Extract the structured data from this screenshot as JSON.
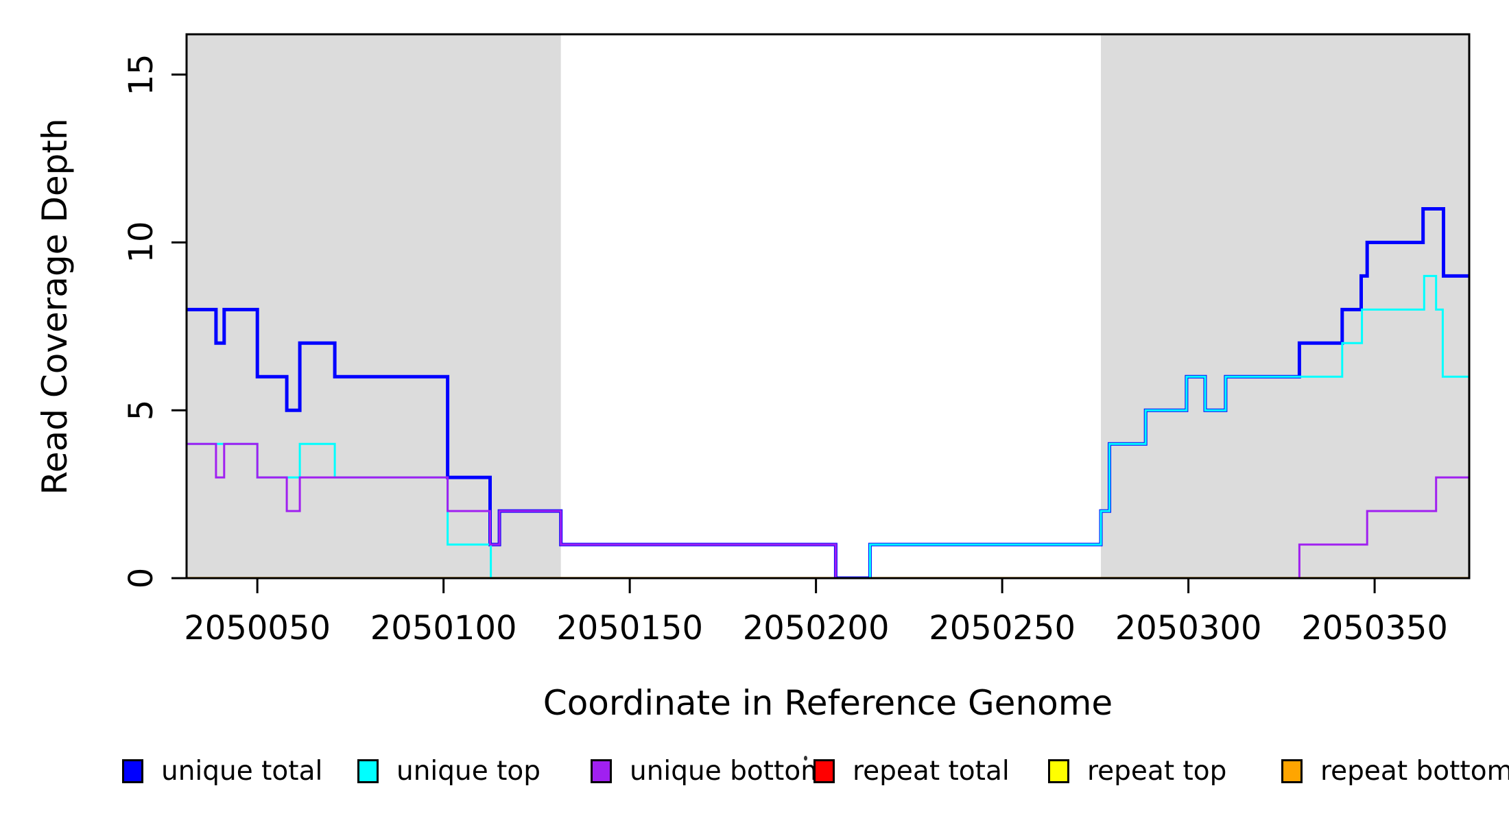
{
  "chart_data": {
    "type": "line",
    "subtype": "step",
    "title": "",
    "xlabel": "Coordinate in Reference Genome",
    "ylabel": "Read Coverage Depth",
    "xlim": [
      2050031,
      2050375.4
    ],
    "ylim": [
      0,
      16.2
    ],
    "x_ticks": [
      2050050,
      2050100,
      2050150,
      2050200,
      2050250,
      2050300,
      2050350
    ],
    "y_ticks": [
      0,
      5,
      10,
      15
    ],
    "grid": false,
    "background": "#ffffff",
    "plot_border_color": "#000000",
    "shaded_regions": [
      {
        "from": 2050031,
        "to": 2050131.5,
        "color": "#dcdcdc"
      },
      {
        "from": 2050276.5,
        "to": 2050375.4,
        "color": "#dcdcdc"
      }
    ],
    "series": [
      {
        "name": "unique total",
        "color": "#0000ff",
        "width": 5,
        "z": 4,
        "points": [
          [
            2050031,
            8
          ],
          [
            2050038.9,
            7
          ],
          [
            2050041.1,
            8
          ],
          [
            2050050,
            6
          ],
          [
            2050057.9,
            5
          ],
          [
            2050061.4,
            7
          ],
          [
            2050070.8,
            6
          ],
          [
            2050101.1,
            3
          ],
          [
            2050112.5,
            1
          ],
          [
            2050115,
            2
          ],
          [
            2050131.5,
            1
          ],
          [
            2050205.3,
            0
          ],
          [
            2050214.5,
            1
          ],
          [
            2050276.5,
            2
          ],
          [
            2050278.8,
            4
          ],
          [
            2050288.5,
            5
          ],
          [
            2050299.5,
            6
          ],
          [
            2050304.5,
            5
          ],
          [
            2050310,
            6
          ],
          [
            2050329.8,
            7
          ],
          [
            2050341.3,
            8
          ],
          [
            2050346.4,
            9
          ],
          [
            2050348,
            10
          ],
          [
            2050363,
            11
          ],
          [
            2050368.5,
            9
          ]
        ]
      },
      {
        "name": "unique top",
        "color": "#00ffff",
        "width": 3,
        "z": 5,
        "points": [
          [
            2050031,
            4
          ],
          [
            2050050,
            3
          ],
          [
            2050061.4,
            4
          ],
          [
            2050070.8,
            3
          ],
          [
            2050101.1,
            1
          ],
          [
            2050112.7,
            0
          ],
          [
            2050214.5,
            1
          ],
          [
            2050276.5,
            2
          ],
          [
            2050278.8,
            4
          ],
          [
            2050288.5,
            5
          ],
          [
            2050299.5,
            6
          ],
          [
            2050304.5,
            5
          ],
          [
            2050310,
            6
          ],
          [
            2050341.3,
            7
          ],
          [
            2050346.6,
            8
          ],
          [
            2050363.3,
            9
          ],
          [
            2050366.5,
            8
          ],
          [
            2050368.3,
            6
          ]
        ]
      },
      {
        "name": "unique bottom",
        "color": "#a020f0",
        "width": 3,
        "z": 6,
        "points": [
          [
            2050031,
            4
          ],
          [
            2050038.9,
            3
          ],
          [
            2050041.1,
            4
          ],
          [
            2050050,
            3
          ],
          [
            2050057.9,
            2
          ],
          [
            2050061.4,
            3
          ],
          [
            2050101.1,
            2
          ],
          [
            2050112.5,
            1
          ],
          [
            2050115,
            2
          ],
          [
            2050131.5,
            1
          ],
          [
            2050205.3,
            0
          ],
          [
            2050329.8,
            1
          ],
          [
            2050348,
            2
          ],
          [
            2050366.5,
            3
          ]
        ]
      },
      {
        "name": "repeat total",
        "color": "#ff0000",
        "width": 3,
        "z": 1,
        "points": [
          [
            2050031,
            0
          ]
        ]
      },
      {
        "name": "repeat top",
        "color": "#ffff00",
        "width": 3,
        "z": 2,
        "points": [
          [
            2050031,
            0
          ]
        ]
      },
      {
        "name": "repeat bottom",
        "color": "#ffa500",
        "width": 3.5,
        "z": 3,
        "points": [
          [
            2050031,
            0
          ]
        ]
      }
    ],
    "legend": {
      "position": "bottom",
      "items": [
        {
          "label": "unique total",
          "color": "#0000ff"
        },
        {
          "label": "unique top",
          "color": "#00ffff"
        },
        {
          "label": "unique bottom",
          "color": "#a020f0"
        },
        {
          "label": "repeat total",
          "color": "#ff0000"
        },
        {
          "label": "repeat top",
          "color": "#ffff00"
        },
        {
          "label": "repeat bottom",
          "color": "#ffa500"
        }
      ]
    }
  }
}
